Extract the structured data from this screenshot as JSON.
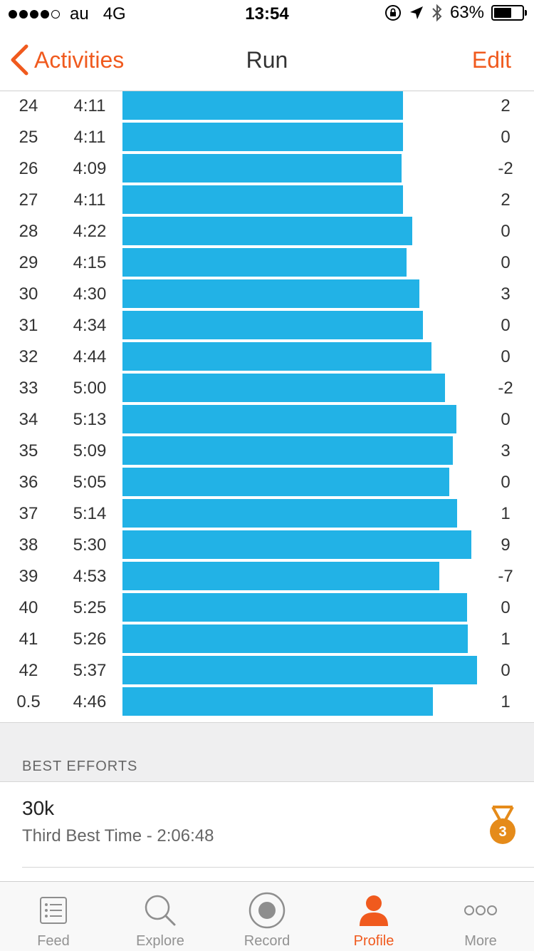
{
  "status_bar": {
    "carrier": "au",
    "network": "4G",
    "time": "13:54",
    "battery": "63%",
    "battery_level": 0.63
  },
  "nav": {
    "back_label": "Activities",
    "title": "Run",
    "edit_label": "Edit"
  },
  "colors": {
    "accent": "#f05a1e",
    "bar": "#22b2e6",
    "medal": "#e58b1a"
  },
  "chart_data": {
    "type": "bar",
    "orientation": "horizontal",
    "columns": [
      "mile",
      "pace",
      "elevation"
    ],
    "splits": [
      {
        "mile": "24",
        "pace": "4:11",
        "elev": "2"
      },
      {
        "mile": "25",
        "pace": "4:11",
        "elev": "0"
      },
      {
        "mile": "26",
        "pace": "4:09",
        "elev": "-2"
      },
      {
        "mile": "27",
        "pace": "4:11",
        "elev": "2"
      },
      {
        "mile": "28",
        "pace": "4:22",
        "elev": "0"
      },
      {
        "mile": "29",
        "pace": "4:15",
        "elev": "0"
      },
      {
        "mile": "30",
        "pace": "4:30",
        "elev": "3"
      },
      {
        "mile": "31",
        "pace": "4:34",
        "elev": "0"
      },
      {
        "mile": "32",
        "pace": "4:44",
        "elev": "0"
      },
      {
        "mile": "33",
        "pace": "5:00",
        "elev": "-2"
      },
      {
        "mile": "34",
        "pace": "5:13",
        "elev": "0"
      },
      {
        "mile": "35",
        "pace": "5:09",
        "elev": "3"
      },
      {
        "mile": "36",
        "pace": "5:05",
        "elev": "0"
      },
      {
        "mile": "37",
        "pace": "5:14",
        "elev": "1"
      },
      {
        "mile": "38",
        "pace": "5:30",
        "elev": "9"
      },
      {
        "mile": "39",
        "pace": "4:53",
        "elev": "-7"
      },
      {
        "mile": "40",
        "pace": "5:25",
        "elev": "0"
      },
      {
        "mile": "41",
        "pace": "5:26",
        "elev": "1"
      },
      {
        "mile": "42",
        "pace": "5:37",
        "elev": "0"
      },
      {
        "mile": "0.5",
        "pace": "4:46",
        "elev": "1"
      }
    ]
  },
  "best_efforts": {
    "section_title": "BEST EFFORTS",
    "items": [
      {
        "name": "30k",
        "detail": "Third Best Time - 2:06:48",
        "medal_rank": "3"
      }
    ]
  },
  "tabs": [
    {
      "label": "Feed",
      "icon": "feed-icon",
      "active": false
    },
    {
      "label": "Explore",
      "icon": "search-icon",
      "active": false
    },
    {
      "label": "Record",
      "icon": "record-icon",
      "active": false
    },
    {
      "label": "Profile",
      "icon": "profile-icon",
      "active": true
    },
    {
      "label": "More",
      "icon": "more-icon",
      "active": false
    }
  ]
}
